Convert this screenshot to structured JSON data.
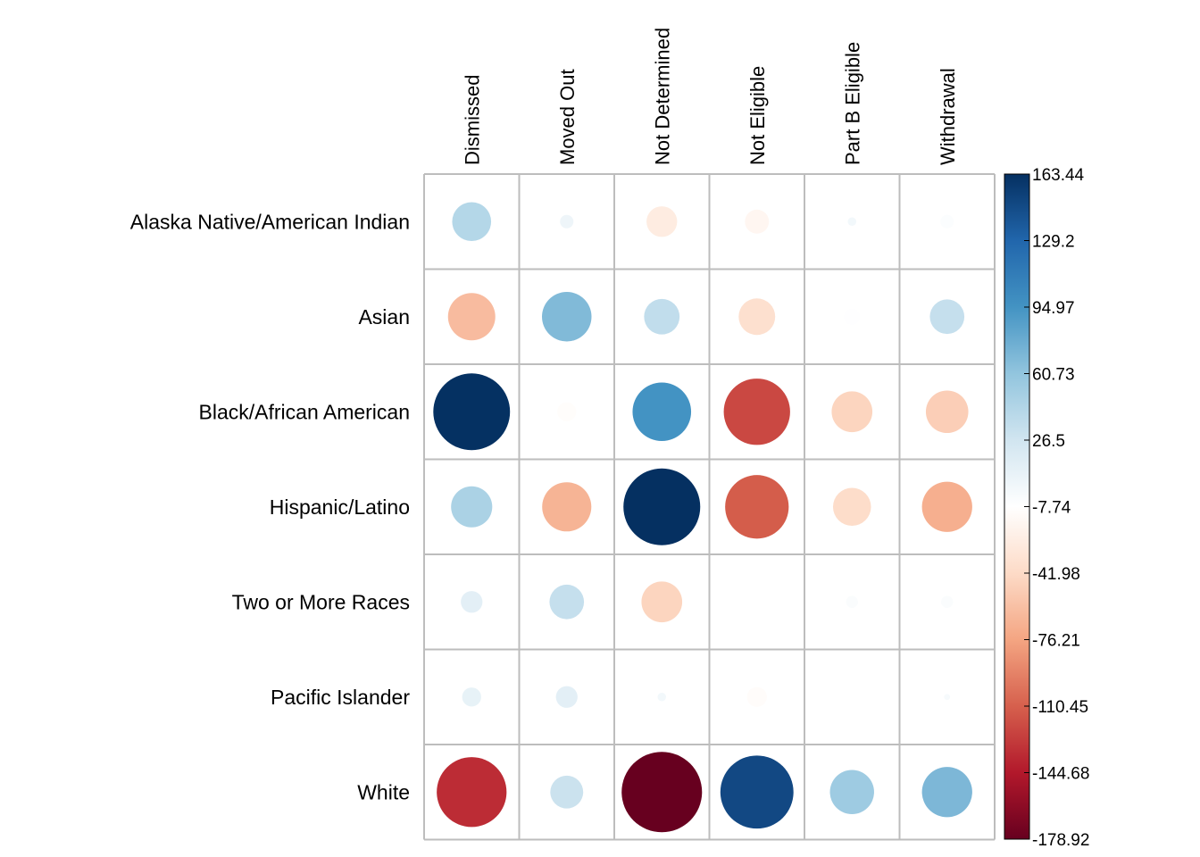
{
  "chart_data": {
    "type": "heatmap",
    "title": "",
    "xlabel": "",
    "ylabel": "",
    "columns": [
      "Dismissed",
      "Moved Out",
      "Not Determined",
      "Not Eligible",
      "Part B Eligible",
      "Withdrawal"
    ],
    "rows": [
      "Alaska Native/American Indian",
      "Asian",
      "Black/African American",
      "Hispanic/Latino",
      "Two or More Races",
      "Pacific Islander",
      "White"
    ],
    "values": [
      [
        42,
        5,
        -26,
        -16,
        2,
        -5
      ],
      [
        -62,
        68,
        35,
        -37,
        -7,
        33
      ],
      [
        163,
        -10,
        95,
        -122,
        -46,
        -50
      ],
      [
        47,
        -67,
        163.44,
        -112,
        -40,
        -70
      ],
      [
        13,
        33,
        -46,
        0,
        -4,
        -4
      ],
      [
        10,
        13,
        2,
        -11,
        -8,
        -1
      ],
      [
        -135,
        30,
        -178.92,
        148,
        54,
        70
      ]
    ],
    "colorbar": {
      "ticks": [
        "163.44",
        "129.2",
        "94.97",
        "60.73",
        "26.5",
        "-7.74",
        "-41.98",
        "-76.21",
        "-110.45",
        "-144.68",
        "-178.92"
      ],
      "min": -178.92,
      "max": 163.44
    },
    "method": "circle",
    "grid": true
  }
}
